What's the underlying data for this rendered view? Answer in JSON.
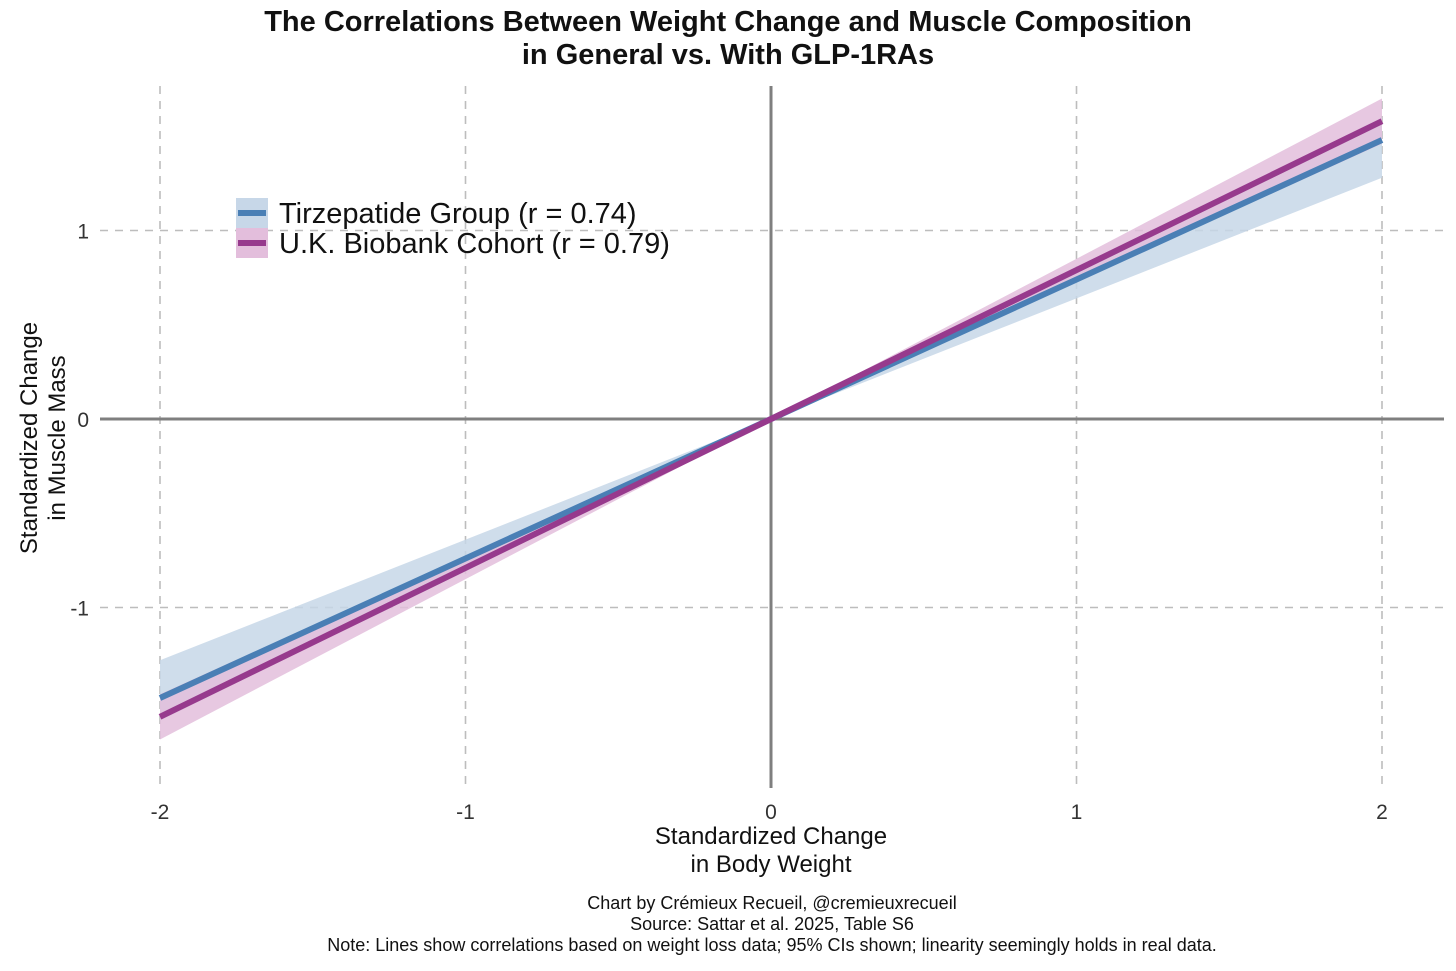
{
  "chart_data": {
    "type": "line",
    "title": [
      "The Correlations Between Weight Change and Muscle Composition",
      "in General vs. With GLP-1RAs"
    ],
    "xlabel": [
      "Standardized Change",
      "in Body Weight"
    ],
    "ylabel": [
      "Standardized Change",
      "in Muscle Mass"
    ],
    "xlim": [
      -2.2,
      2.2
    ],
    "ylim": [
      -1.96,
      1.77
    ],
    "x_ticks": [
      -2,
      -1,
      0,
      1,
      2
    ],
    "x_tick_labels": [
      "-2",
      "-1",
      "0",
      "1",
      "2"
    ],
    "y_ticks": [
      -1,
      0,
      1
    ],
    "y_tick_labels": [
      "-1",
      "0",
      "1"
    ],
    "grid": "dashed",
    "legend_position": "top-left",
    "series": [
      {
        "name": "Tirzepatide Group (r = 0.74)",
        "color": "#4a7fb5",
        "band_color": "#c7d7e8",
        "x": [
          -2,
          0,
          2
        ],
        "y": [
          -1.48,
          0,
          1.48
        ],
        "ci_lower": [
          -1.6,
          0,
          1.28
        ],
        "ci_upper": [
          -1.28,
          0,
          1.6
        ]
      },
      {
        "name": "U.K. Biobank Cohort (r = 0.79)",
        "color": "#973a8d",
        "band_color": "#e3bedc",
        "x": [
          -2,
          0,
          2
        ],
        "y": [
          -1.58,
          0,
          1.58
        ],
        "ci_lower": [
          -1.7,
          0,
          1.46
        ],
        "ci_upper": [
          -1.46,
          0,
          1.7
        ]
      }
    ]
  },
  "caption": [
    "Chart by Crémieux Recueil, @cremieuxrecueil",
    "Source: Sattar et al. 2025, Table S6",
    "Note: Lines show correlations based on weight loss data; 95% CIs shown; linearity seemingly holds in real data."
  ]
}
